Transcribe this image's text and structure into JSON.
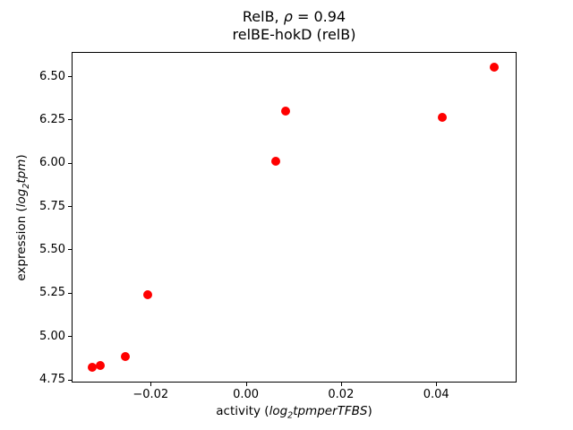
{
  "chart_data": {
    "type": "scatter",
    "title_plain": "RelB, ρ = 0.94",
    "title_parts": [
      {
        "text": "RelB, ",
        "italic": false
      },
      {
        "text": "ρ",
        "italic": true
      },
      {
        "text": " = 0.94",
        "italic": false
      }
    ],
    "subtitle": "relBE-hokD (relB)",
    "xlabel_plain": "activity (log₂tpmperTFBS)",
    "xlabel_parts": [
      {
        "text": "activity (",
        "italic": false
      },
      {
        "text": "log",
        "italic": true
      },
      {
        "text": "2",
        "italic": true,
        "sub": true
      },
      {
        "text": "tpmperTFBS",
        "italic": true
      },
      {
        "text": ")",
        "italic": false
      }
    ],
    "ylabel_plain": "expression (log₂tpm)",
    "ylabel_parts": [
      {
        "text": "expression (",
        "italic": false
      },
      {
        "text": "log",
        "italic": true
      },
      {
        "text": "2",
        "italic": true,
        "sub": true
      },
      {
        "text": "tpm",
        "italic": true
      },
      {
        "text": ")",
        "italic": false
      }
    ],
    "points": [
      {
        "x": -0.0323,
        "y": 4.82
      },
      {
        "x": -0.0305,
        "y": 4.83
      },
      {
        "x": -0.0253,
        "y": 4.88
      },
      {
        "x": -0.0206,
        "y": 5.24
      },
      {
        "x": 0.0062,
        "y": 6.01
      },
      {
        "x": 0.0083,
        "y": 6.3
      },
      {
        "x": 0.0412,
        "y": 6.26
      },
      {
        "x": 0.0522,
        "y": 6.55
      }
    ],
    "xlim": [
      -0.0366,
      0.0567
    ],
    "ylim": [
      4.732,
      6.64
    ],
    "xticks": [
      {
        "v": -0.02,
        "label": "−0.02"
      },
      {
        "v": 0.0,
        "label": "0.00"
      },
      {
        "v": 0.02,
        "label": "0.02"
      },
      {
        "v": 0.04,
        "label": "0.04"
      }
    ],
    "yticks": [
      {
        "v": 4.75,
        "label": "4.75"
      },
      {
        "v": 5.0,
        "label": "5.00"
      },
      {
        "v": 5.25,
        "label": "5.25"
      },
      {
        "v": 5.5,
        "label": "5.50"
      },
      {
        "v": 5.75,
        "label": "5.75"
      },
      {
        "v": 6.0,
        "label": "6.00"
      },
      {
        "v": 6.25,
        "label": "6.25"
      },
      {
        "v": 6.5,
        "label": "6.50"
      }
    ],
    "legend": null,
    "grid": false,
    "marker_color": "#ff0000",
    "axis_color": "#000000",
    "background": "#ffffff"
  }
}
